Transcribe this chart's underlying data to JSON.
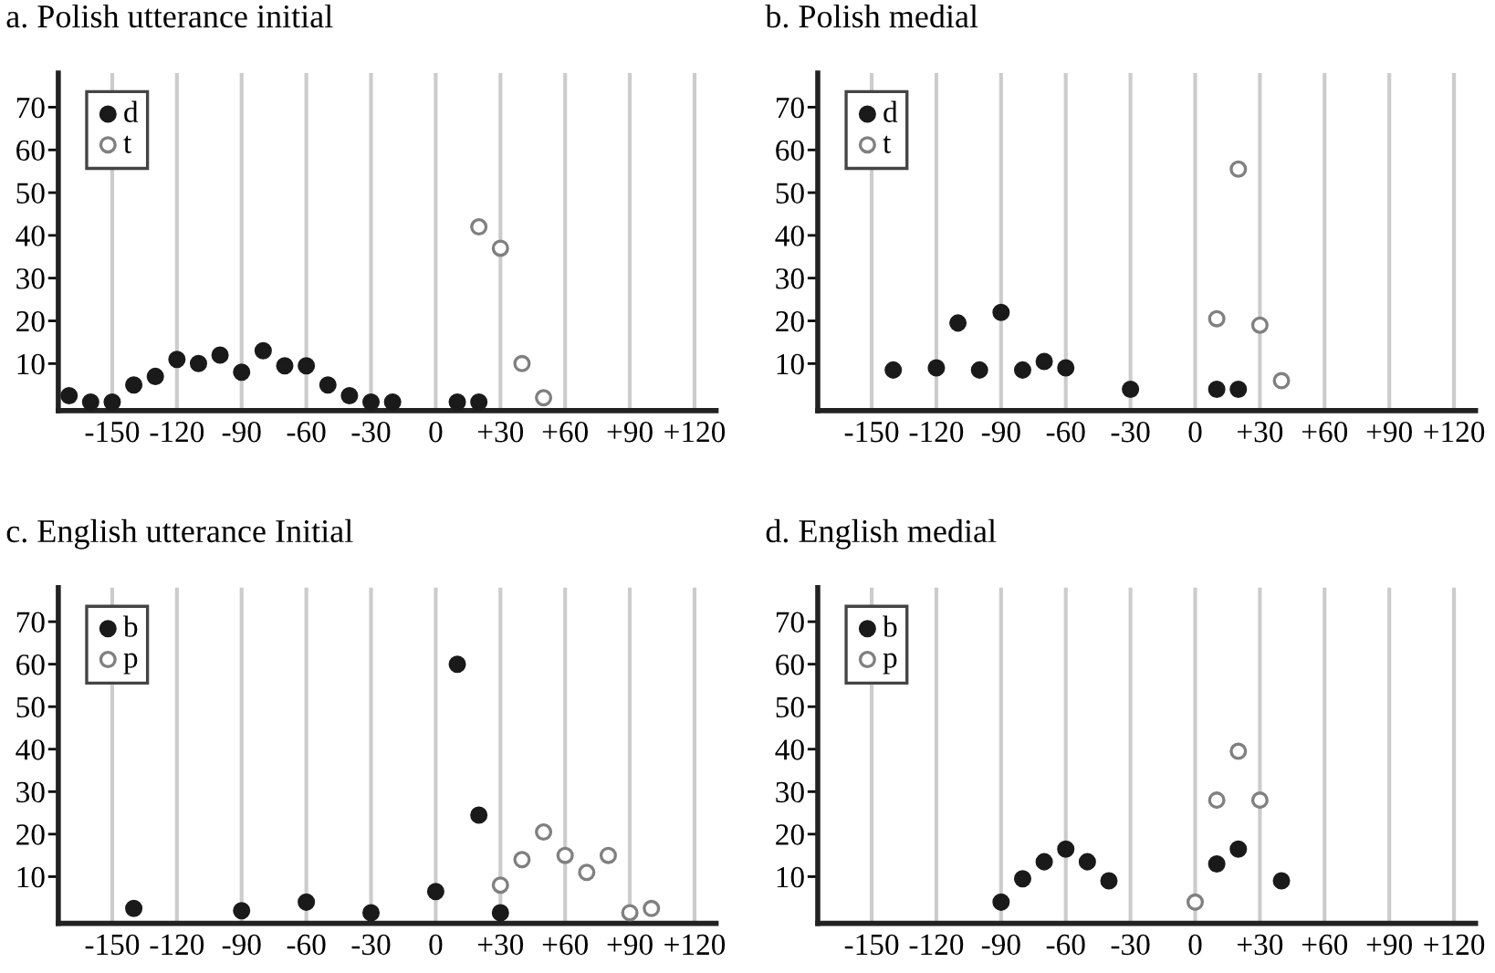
{
  "chart_data": [
    {
      "type": "scatter",
      "title": "a. Polish utterance initial",
      "xlim": [
        -175,
        130
      ],
      "ylim": [
        -1,
        78
      ],
      "xticks": [
        -150,
        -120,
        -90,
        -60,
        -30,
        0,
        {
          "value": 30,
          "label": "+30"
        },
        {
          "value": 60,
          "label": "+60"
        },
        {
          "value": 90,
          "label": "+90"
        },
        {
          "value": 120,
          "label": "+120"
        }
      ],
      "yticks": [
        10,
        20,
        30,
        40,
        50,
        60,
        70
      ],
      "grid": "x",
      "legend": "top left",
      "marker": "circle",
      "series": [
        {
          "name": "d",
          "color": "#1a1a1a",
          "x": [
            -170,
            -160,
            -150,
            -140,
            -130,
            -120,
            -110,
            -100,
            -90,
            -80,
            -70,
            -60,
            -50,
            -40,
            -30,
            -20,
            10,
            20
          ],
          "values": [
            2.5,
            1,
            1,
            5,
            7,
            11,
            10,
            12,
            8,
            13,
            9.5,
            9.5,
            5,
            2.5,
            1,
            1,
            1,
            1
          ]
        },
        {
          "name": "t",
          "color": "#808080",
          "x": [
            20,
            30,
            40,
            50
          ],
          "values": [
            42,
            37,
            10,
            2
          ]
        }
      ]
    },
    {
      "type": "scatter",
      "title": "b. Polish medial",
      "xlim": [
        -175,
        130
      ],
      "ylim": [
        -1,
        78
      ],
      "xticks": [
        -150,
        -120,
        -90,
        -60,
        -30,
        0,
        {
          "value": 30,
          "label": "+30"
        },
        {
          "value": 60,
          "label": "+60"
        },
        {
          "value": 90,
          "label": "+90"
        },
        {
          "value": 120,
          "label": "+120"
        }
      ],
      "yticks": [
        10,
        20,
        30,
        40,
        50,
        60,
        70
      ],
      "grid": "x",
      "legend": "top left",
      "marker": "circle",
      "series": [
        {
          "name": "d",
          "color": "#1a1a1a",
          "x": [
            -140,
            -120,
            -110,
            -100,
            -90,
            -80,
            -70,
            -60,
            -30,
            10,
            20
          ],
          "values": [
            8.5,
            9,
            19.5,
            8.5,
            22,
            8.5,
            10.5,
            9,
            4,
            4,
            4
          ]
        },
        {
          "name": "t",
          "color": "#808080",
          "x": [
            10,
            20,
            30,
            40
          ],
          "values": [
            20.5,
            55.5,
            19,
            6
          ]
        }
      ]
    },
    {
      "type": "scatter",
      "title": "c. English utterance Initial",
      "xlim": [
        -175,
        130
      ],
      "ylim": [
        -1,
        78
      ],
      "xticks": [
        -150,
        -120,
        -90,
        -60,
        -30,
        0,
        {
          "value": 30,
          "label": "+30"
        },
        {
          "value": 60,
          "label": "+60"
        },
        {
          "value": 90,
          "label": "+90"
        },
        {
          "value": 120,
          "label": "+120"
        }
      ],
      "yticks": [
        10,
        20,
        30,
        40,
        50,
        60,
        70
      ],
      "grid": "x",
      "legend": "top left",
      "marker": "circle",
      "series": [
        {
          "name": "b",
          "color": "#1a1a1a",
          "x": [
            -140,
            -90,
            -60,
            -30,
            0,
            10,
            20,
            30
          ],
          "values": [
            2.5,
            2,
            4,
            1.5,
            6.5,
            60,
            24.5,
            1.5
          ]
        },
        {
          "name": "p",
          "color": "#808080",
          "x": [
            30,
            40,
            50,
            60,
            70,
            80,
            90,
            100
          ],
          "values": [
            8,
            14,
            20.5,
            15,
            11,
            15,
            1.5,
            2.5
          ]
        }
      ]
    },
    {
      "type": "scatter",
      "title": "d. English medial",
      "xlim": [
        -175,
        130
      ],
      "ylim": [
        -1,
        78
      ],
      "xticks": [
        -150,
        -120,
        -90,
        -60,
        -30,
        0,
        {
          "value": 30,
          "label": "+30"
        },
        {
          "value": 60,
          "label": "+60"
        },
        {
          "value": 90,
          "label": "+90"
        },
        {
          "value": 120,
          "label": "+120"
        }
      ],
      "yticks": [
        10,
        20,
        30,
        40,
        50,
        60,
        70
      ],
      "grid": "x",
      "legend": "top left",
      "marker": "circle",
      "series": [
        {
          "name": "b",
          "color": "#1a1a1a",
          "x": [
            -90,
            -80,
            -70,
            -60,
            -50,
            -40,
            10,
            20,
            40
          ],
          "values": [
            4,
            9.5,
            13.5,
            16.5,
            13.5,
            9,
            13,
            16.5,
            9
          ]
        },
        {
          "name": "p",
          "color": "#808080",
          "x": [
            0,
            10,
            20,
            30
          ],
          "values": [
            4,
            28,
            39.5,
            28
          ]
        }
      ]
    }
  ]
}
